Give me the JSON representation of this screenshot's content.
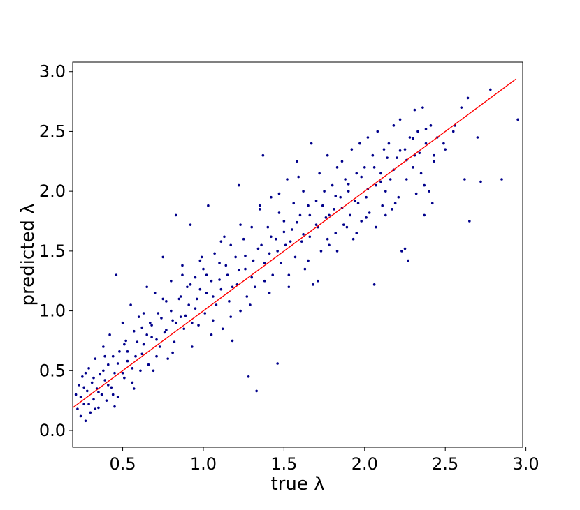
{
  "chart_data": {
    "type": "scatter",
    "title": "",
    "xlabel": "true λ",
    "ylabel": "predicted λ",
    "xlim": [
      0.19,
      2.98
    ],
    "ylim": [
      -0.14,
      3.08
    ],
    "xticks": [
      0.5,
      1.0,
      1.5,
      2.0,
      2.5,
      3.0
    ],
    "yticks": [
      0.0,
      0.5,
      1.0,
      1.5,
      2.0,
      2.5,
      3.0
    ],
    "xtick_labels": [
      "0.5",
      "1.0",
      "1.5",
      "2.0",
      "2.5",
      "3.0"
    ],
    "ytick_labels": [
      "0.0",
      "0.5",
      "1.0",
      "1.5",
      "2.0",
      "2.5",
      "3.0"
    ],
    "grid": false,
    "legend": "none",
    "point_color": "#00008b",
    "line_color": "#ff0000",
    "reference_line": {
      "x": [
        0.19,
        2.94
      ],
      "y": [
        0.19,
        2.94
      ]
    },
    "points": [
      [
        0.21,
        0.3
      ],
      [
        0.22,
        0.18
      ],
      [
        0.23,
        0.38
      ],
      [
        0.24,
        0.12
      ],
      [
        0.25,
        0.45
      ],
      [
        0.26,
        0.22
      ],
      [
        0.27,
        0.08
      ],
      [
        0.28,
        0.33
      ],
      [
        0.29,
        0.52
      ],
      [
        0.3,
        0.15
      ],
      [
        0.31,
        0.4
      ],
      [
        0.32,
        0.26
      ],
      [
        0.33,
        0.6
      ],
      [
        0.34,
        0.35
      ],
      [
        0.35,
        0.19
      ],
      [
        0.36,
        0.47
      ],
      [
        0.37,
        0.3
      ],
      [
        0.38,
        0.7
      ],
      [
        0.39,
        0.42
      ],
      [
        0.4,
        0.25
      ],
      [
        0.41,
        0.55
      ],
      [
        0.42,
        0.8
      ],
      [
        0.43,
        0.36
      ],
      [
        0.44,
        0.62
      ],
      [
        0.45,
        0.48
      ],
      [
        0.46,
        1.3
      ],
      [
        0.47,
        0.28
      ],
      [
        0.48,
        0.66
      ],
      [
        0.5,
        0.9
      ],
      [
        0.51,
        0.44
      ],
      [
        0.52,
        0.75
      ],
      [
        0.53,
        0.58
      ],
      [
        0.55,
        1.05
      ],
      [
        0.56,
        0.4
      ],
      [
        0.57,
        0.83
      ],
      [
        0.58,
        0.62
      ],
      [
        0.6,
        0.95
      ],
      [
        0.61,
        0.5
      ],
      [
        0.62,
        0.86
      ],
      [
        0.63,
        0.72
      ],
      [
        0.65,
        1.2
      ],
      [
        0.66,
        0.55
      ],
      [
        0.67,
        0.9
      ],
      [
        0.68,
        0.78
      ],
      [
        0.7,
        1.15
      ],
      [
        0.71,
        0.62
      ],
      [
        0.72,
        0.98
      ],
      [
        0.73,
        0.7
      ],
      [
        0.75,
        1.45
      ],
      [
        0.76,
        0.82
      ],
      [
        0.77,
        1.08
      ],
      [
        0.78,
        0.6
      ],
      [
        0.8,
        1.25
      ],
      [
        0.81,
        0.92
      ],
      [
        0.82,
        0.74
      ],
      [
        0.83,
        1.8
      ],
      [
        0.85,
        1.1
      ],
      [
        0.86,
        0.95
      ],
      [
        0.87,
        1.38
      ],
      [
        0.88,
        0.85
      ],
      [
        0.9,
        1.2
      ],
      [
        0.91,
        1.05
      ],
      [
        0.92,
        1.72
      ],
      [
        0.93,
        0.9
      ],
      [
        0.95,
        1.28
      ],
      [
        0.96,
        1.1
      ],
      [
        0.97,
        0.88
      ],
      [
        0.98,
        1.42
      ],
      [
        1.0,
        1.35
      ],
      [
        1.01,
        0.98
      ],
      [
        1.02,
        1.15
      ],
      [
        1.03,
        1.88
      ],
      [
        1.05,
        1.25
      ],
      [
        1.06,
        0.92
      ],
      [
        1.07,
        1.48
      ],
      [
        1.08,
        1.05
      ],
      [
        1.1,
        1.4
      ],
      [
        1.11,
        1.18
      ],
      [
        1.12,
        0.85
      ],
      [
        1.13,
        1.62
      ],
      [
        1.15,
        1.3
      ],
      [
        1.16,
        1.08
      ],
      [
        1.17,
        1.55
      ],
      [
        1.18,
        0.75
      ],
      [
        1.2,
        1.45
      ],
      [
        1.21,
        1.22
      ],
      [
        1.22,
        2.05
      ],
      [
        1.23,
        1.0
      ],
      [
        1.25,
        1.6
      ],
      [
        1.26,
        1.35
      ],
      [
        1.27,
        1.12
      ],
      [
        1.28,
        0.45
      ],
      [
        1.3,
        1.7
      ],
      [
        1.31,
        1.42
      ],
      [
        1.32,
        1.2
      ],
      [
        1.33,
        0.33
      ],
      [
        1.35,
        1.85
      ],
      [
        1.36,
        1.55
      ],
      [
        1.37,
        2.3
      ],
      [
        1.38,
        1.25
      ],
      [
        1.4,
        1.7
      ],
      [
        1.41,
        1.48
      ],
      [
        1.42,
        1.95
      ],
      [
        1.43,
        1.3
      ],
      [
        1.45,
        1.6
      ],
      [
        1.46,
        0.56
      ],
      [
        1.47,
        1.82
      ],
      [
        1.48,
        1.4
      ],
      [
        1.5,
        1.75
      ],
      [
        1.51,
        1.55
      ],
      [
        1.52,
        2.1
      ],
      [
        1.53,
        1.2
      ],
      [
        1.55,
        1.68
      ],
      [
        1.56,
        1.9
      ],
      [
        1.57,
        1.45
      ],
      [
        1.58,
        2.25
      ],
      [
        1.6,
        1.8
      ],
      [
        1.61,
        1.58
      ],
      [
        1.62,
        2.0
      ],
      [
        1.63,
        1.35
      ],
      [
        1.65,
        1.88
      ],
      [
        1.66,
        1.62
      ],
      [
        1.67,
        2.4
      ],
      [
        1.68,
        1.22
      ],
      [
        1.7,
        1.92
      ],
      [
        1.71,
        1.7
      ],
      [
        1.72,
        2.15
      ],
      [
        1.73,
        1.5
      ],
      [
        1.75,
        2.0
      ],
      [
        1.76,
        1.78
      ],
      [
        1.77,
        2.3
      ],
      [
        1.78,
        1.55
      ],
      [
        1.8,
        2.05
      ],
      [
        1.81,
        1.85
      ],
      [
        1.82,
        1.65
      ],
      [
        1.83,
        2.2
      ],
      [
        1.85,
        1.95
      ],
      [
        1.86,
        2.25
      ],
      [
        1.87,
        1.72
      ],
      [
        1.88,
        2.1
      ],
      [
        1.9,
        2.0
      ],
      [
        1.91,
        1.8
      ],
      [
        1.92,
        2.35
      ],
      [
        1.93,
        1.6
      ],
      [
        1.95,
        2.15
      ],
      [
        1.96,
        1.9
      ],
      [
        1.97,
        2.4
      ],
      [
        1.98,
        1.75
      ],
      [
        2.0,
        2.2
      ],
      [
        2.01,
        1.95
      ],
      [
        2.02,
        2.45
      ],
      [
        2.03,
        1.82
      ],
      [
        2.05,
        2.3
      ],
      [
        2.06,
        1.22
      ],
      [
        2.07,
        2.05
      ],
      [
        2.08,
        2.5
      ],
      [
        2.1,
        2.15
      ],
      [
        2.11,
        1.88
      ],
      [
        2.12,
        2.35
      ],
      [
        2.13,
        2.0
      ],
      [
        2.15,
        2.4
      ],
      [
        2.16,
        2.1
      ],
      [
        2.17,
        1.85
      ],
      [
        2.18,
        2.55
      ],
      [
        2.2,
        2.28
      ],
      [
        2.21,
        1.95
      ],
      [
        2.22,
        2.6
      ],
      [
        2.23,
        1.5
      ],
      [
        2.25,
        2.35
      ],
      [
        2.26,
        2.1
      ],
      [
        2.27,
        1.42
      ],
      [
        2.28,
        2.45
      ],
      [
        2.3,
        2.2
      ],
      [
        2.31,
        2.68
      ],
      [
        2.32,
        1.98
      ],
      [
        2.33,
        2.5
      ],
      [
        2.35,
        2.15
      ],
      [
        2.36,
        2.7
      ],
      [
        2.37,
        1.8
      ],
      [
        2.38,
        2.4
      ],
      [
        2.4,
        2.0
      ],
      [
        2.41,
        2.55
      ],
      [
        2.42,
        1.9
      ],
      [
        2.43,
        2.25
      ],
      [
        2.45,
        2.45
      ],
      [
        2.5,
        2.35
      ],
      [
        2.55,
        2.5
      ],
      [
        2.6,
        2.7
      ],
      [
        2.62,
        2.1
      ],
      [
        2.65,
        1.75
      ],
      [
        2.7,
        2.45
      ],
      [
        2.72,
        2.08
      ],
      [
        2.78,
        2.85
      ],
      [
        2.85,
        2.1
      ],
      [
        2.95,
        2.6
      ],
      [
        0.24,
        0.28
      ],
      [
        0.26,
        0.36
      ],
      [
        0.29,
        0.22
      ],
      [
        0.32,
        0.44
      ],
      [
        0.35,
        0.32
      ],
      [
        0.38,
        0.5
      ],
      [
        0.41,
        0.38
      ],
      [
        0.44,
        0.3
      ],
      [
        0.47,
        0.56
      ],
      [
        0.5,
        0.48
      ],
      [
        0.53,
        0.66
      ],
      [
        0.56,
        0.52
      ],
      [
        0.59,
        0.74
      ],
      [
        0.62,
        0.64
      ],
      [
        0.65,
        0.8
      ],
      [
        0.68,
        0.88
      ],
      [
        0.71,
        0.76
      ],
      [
        0.74,
        0.94
      ],
      [
        0.77,
        0.84
      ],
      [
        0.8,
        1.0
      ],
      [
        0.83,
        0.9
      ],
      [
        0.86,
        1.12
      ],
      [
        0.89,
        0.96
      ],
      [
        0.92,
        1.22
      ],
      [
        0.95,
        1.02
      ],
      [
        0.98,
        1.18
      ],
      [
        1.02,
        1.3
      ],
      [
        1.06,
        1.12
      ],
      [
        1.1,
        1.26
      ],
      [
        1.14,
        1.38
      ],
      [
        1.18,
        1.2
      ],
      [
        1.22,
        1.34
      ],
      [
        1.26,
        1.46
      ],
      [
        1.3,
        1.28
      ],
      [
        1.34,
        1.52
      ],
      [
        1.38,
        1.4
      ],
      [
        1.42,
        1.62
      ],
      [
        1.46,
        1.5
      ],
      [
        1.5,
        1.66
      ],
      [
        1.54,
        1.58
      ],
      [
        1.58,
        1.74
      ],
      [
        1.62,
        1.64
      ],
      [
        1.66,
        1.8
      ],
      [
        1.7,
        1.72
      ],
      [
        1.74,
        1.88
      ],
      [
        1.78,
        1.8
      ],
      [
        1.82,
        1.96
      ],
      [
        1.86,
        1.86
      ],
      [
        1.9,
        2.06
      ],
      [
        1.94,
        1.92
      ],
      [
        1.98,
        2.12
      ],
      [
        2.02,
        2.02
      ],
      [
        2.06,
        2.2
      ],
      [
        2.1,
        2.08
      ],
      [
        2.14,
        2.28
      ],
      [
        2.18,
        2.18
      ],
      [
        2.22,
        2.34
      ],
      [
        2.26,
        2.26
      ],
      [
        2.3,
        2.44
      ],
      [
        2.34,
        2.32
      ],
      [
        2.38,
        2.52
      ],
      [
        0.27,
        0.48
      ],
      [
        0.33,
        0.18
      ],
      [
        0.39,
        0.62
      ],
      [
        0.45,
        0.2
      ],
      [
        0.51,
        0.72
      ],
      [
        0.57,
        0.35
      ],
      [
        0.63,
        0.98
      ],
      [
        0.69,
        0.5
      ],
      [
        0.75,
        1.1
      ],
      [
        0.81,
        0.65
      ],
      [
        0.87,
        1.3
      ],
      [
        0.93,
        0.7
      ],
      [
        0.99,
        1.45
      ],
      [
        1.05,
        0.8
      ],
      [
        1.11,
        1.58
      ],
      [
        1.17,
        0.95
      ],
      [
        1.23,
        1.72
      ],
      [
        1.29,
        1.05
      ],
      [
        1.35,
        1.88
      ],
      [
        1.41,
        1.15
      ],
      [
        1.47,
        1.98
      ],
      [
        1.53,
        1.3
      ],
      [
        1.59,
        2.12
      ],
      [
        1.65,
        1.42
      ],
      [
        1.71,
        1.25
      ],
      [
        1.77,
        1.6
      ],
      [
        1.83,
        1.5
      ],
      [
        1.89,
        1.7
      ],
      [
        1.95,
        1.65
      ],
      [
        2.01,
        1.78
      ],
      [
        2.07,
        1.7
      ],
      [
        2.13,
        1.8
      ],
      [
        2.19,
        1.9
      ],
      [
        2.25,
        1.52
      ],
      [
        2.31,
        2.3
      ],
      [
        2.37,
        2.05
      ],
      [
        2.43,
        2.3
      ],
      [
        2.49,
        2.4
      ],
      [
        2.56,
        2.55
      ],
      [
        2.64,
        2.78
      ]
    ]
  }
}
